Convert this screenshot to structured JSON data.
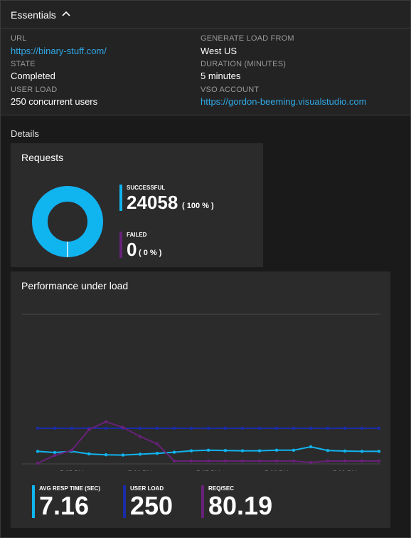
{
  "essentials": {
    "title": "Essentials",
    "url_label": "URL",
    "url_value": "https://binary-stuff.com/",
    "state_label": "STATE",
    "state_value": "Completed",
    "user_load_label": "USER LOAD",
    "user_load_value": "250 concurrent users",
    "generate_label": "GENERATE LOAD FROM",
    "generate_value": "West US",
    "duration_label": "DURATION (MINUTES)",
    "duration_value": "5 minutes",
    "vso_label": "VSO ACCOUNT",
    "vso_value": "https://gordon-beeming.visualstudio.com"
  },
  "details_label": "Details",
  "requests": {
    "title": "Requests",
    "successful_label": "SUCCESSFUL",
    "successful_value": "24058",
    "successful_pct": "( 100 % )",
    "failed_label": "FAILED",
    "failed_value": "0",
    "failed_pct": "( 0 % )",
    "donut_success_fraction": 1.0
  },
  "performance": {
    "title": "Performance under load",
    "avg_resp_label": "AVG RESP TIME (SEC)",
    "avg_resp_value": "7.16",
    "user_load_label": "USER LOAD",
    "user_load_value": "250",
    "req_sec_label": "REQ/SEC",
    "req_sec_value": "80.19"
  },
  "colors": {
    "cyan": "#10b4ef",
    "navy": "#1a2ca8",
    "purple": "#68217a",
    "link": "#2fa8e6"
  },
  "chart_data": {
    "type": "line",
    "x_tick_labels": [
      "7:35 PM",
      "7:36 PM",
      "7:37 PM",
      "7:38 PM",
      "7:39 PM"
    ],
    "x_index_of_ticks": [
      2,
      6,
      10,
      14,
      18
    ],
    "series": [
      {
        "name": "AVG RESP TIME (SEC)",
        "color": "#10b4ef",
        "values": [
          0.44,
          0.4,
          0.44,
          0.35,
          0.32,
          0.31,
          0.34,
          0.37,
          0.41,
          0.46,
          0.48,
          0.47,
          0.46,
          0.46,
          0.48,
          0.48,
          0.6,
          0.47,
          0.45,
          0.44,
          0.44
        ]
      },
      {
        "name": "USER LOAD",
        "color": "#1a2ca8",
        "values": [
          1.25,
          1.25,
          1.25,
          1.25,
          1.25,
          1.25,
          1.25,
          1.25,
          1.25,
          1.25,
          1.25,
          1.25,
          1.25,
          1.25,
          1.25,
          1.25,
          1.25,
          1.25,
          1.25,
          1.25,
          1.25
        ]
      },
      {
        "name": "REQ/SEC",
        "color": "#68217a",
        "values": [
          0.02,
          0.3,
          0.48,
          1.2,
          1.48,
          1.28,
          0.96,
          0.7,
          0.1,
          0.1,
          0.1,
          0.1,
          0.1,
          0.1,
          0.1,
          0.1,
          0.05,
          0.1,
          0.1,
          0.1,
          0.1
        ]
      }
    ]
  }
}
